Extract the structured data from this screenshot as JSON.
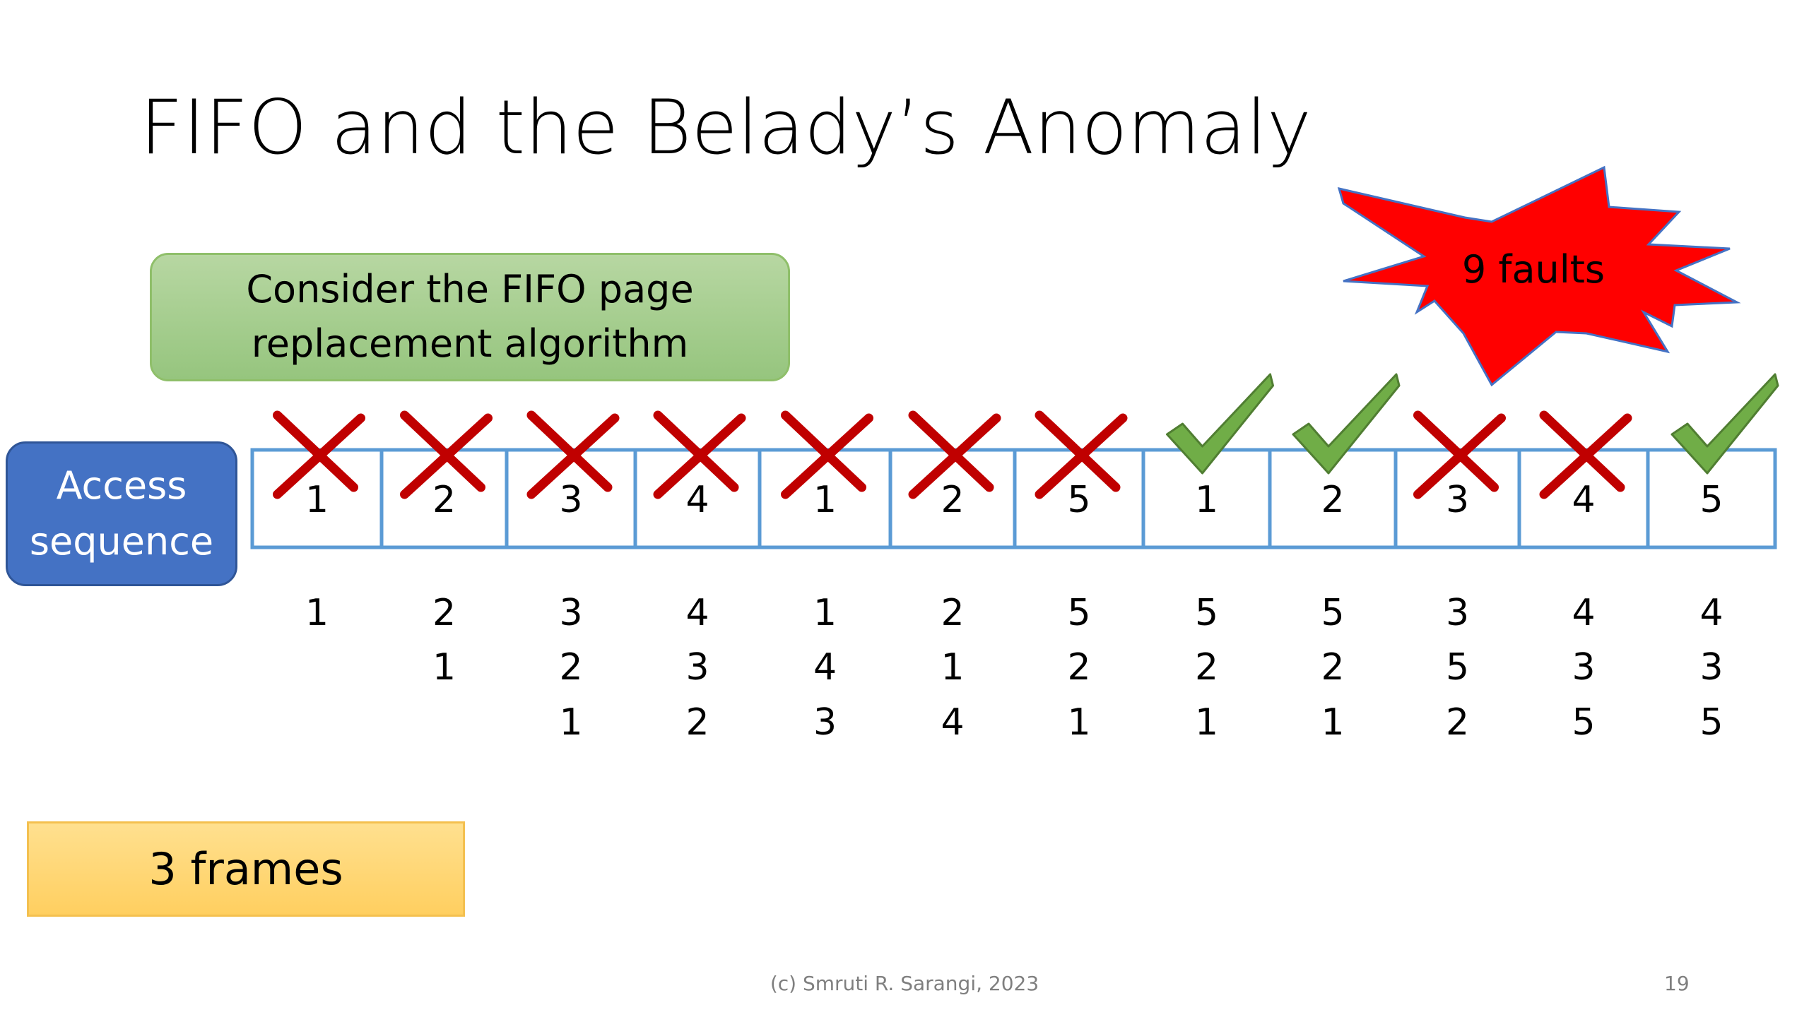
{
  "slide": {
    "title": "FIFO and the Belady’s Anomaly",
    "callout_line1": "Consider the FIFO page",
    "callout_line2": "replacement algorithm",
    "access_line1": "Access",
    "access_line2": "sequence",
    "frames_label": "3 frames",
    "faults_label": "9 faults",
    "footer": "(c) Smruti R. Sarangi, 2023",
    "page_number": "19"
  },
  "sequence": [
    {
      "page": "1",
      "result": "fault",
      "frames": [
        "1"
      ]
    },
    {
      "page": "2",
      "result": "fault",
      "frames": [
        "2",
        "1"
      ]
    },
    {
      "page": "3",
      "result": "fault",
      "frames": [
        "3",
        "2",
        "1"
      ]
    },
    {
      "page": "4",
      "result": "fault",
      "frames": [
        "4",
        "3",
        "2"
      ]
    },
    {
      "page": "1",
      "result": "fault",
      "frames": [
        "1",
        "4",
        "3"
      ]
    },
    {
      "page": "2",
      "result": "fault",
      "frames": [
        "2",
        "1",
        "4"
      ]
    },
    {
      "page": "5",
      "result": "fault",
      "frames": [
        "5",
        "2",
        "1"
      ]
    },
    {
      "page": "1",
      "result": "hit",
      "frames": [
        "5",
        "2",
        "1"
      ]
    },
    {
      "page": "2",
      "result": "hit",
      "frames": [
        "5",
        "2",
        "1"
      ]
    },
    {
      "page": "3",
      "result": "fault",
      "frames": [
        "3",
        "5",
        "2"
      ]
    },
    {
      "page": "4",
      "result": "fault",
      "frames": [
        "4",
        "3",
        "5"
      ]
    },
    {
      "page": "5",
      "result": "hit",
      "frames": [
        "4",
        "3",
        "5"
      ]
    }
  ],
  "colors": {
    "cross": "#c00000",
    "check": "#70ad47",
    "check_outline": "#507e32",
    "cell_border": "#5b9bd5",
    "star_fill": "#ff0000",
    "star_outline": "#4472c4"
  }
}
